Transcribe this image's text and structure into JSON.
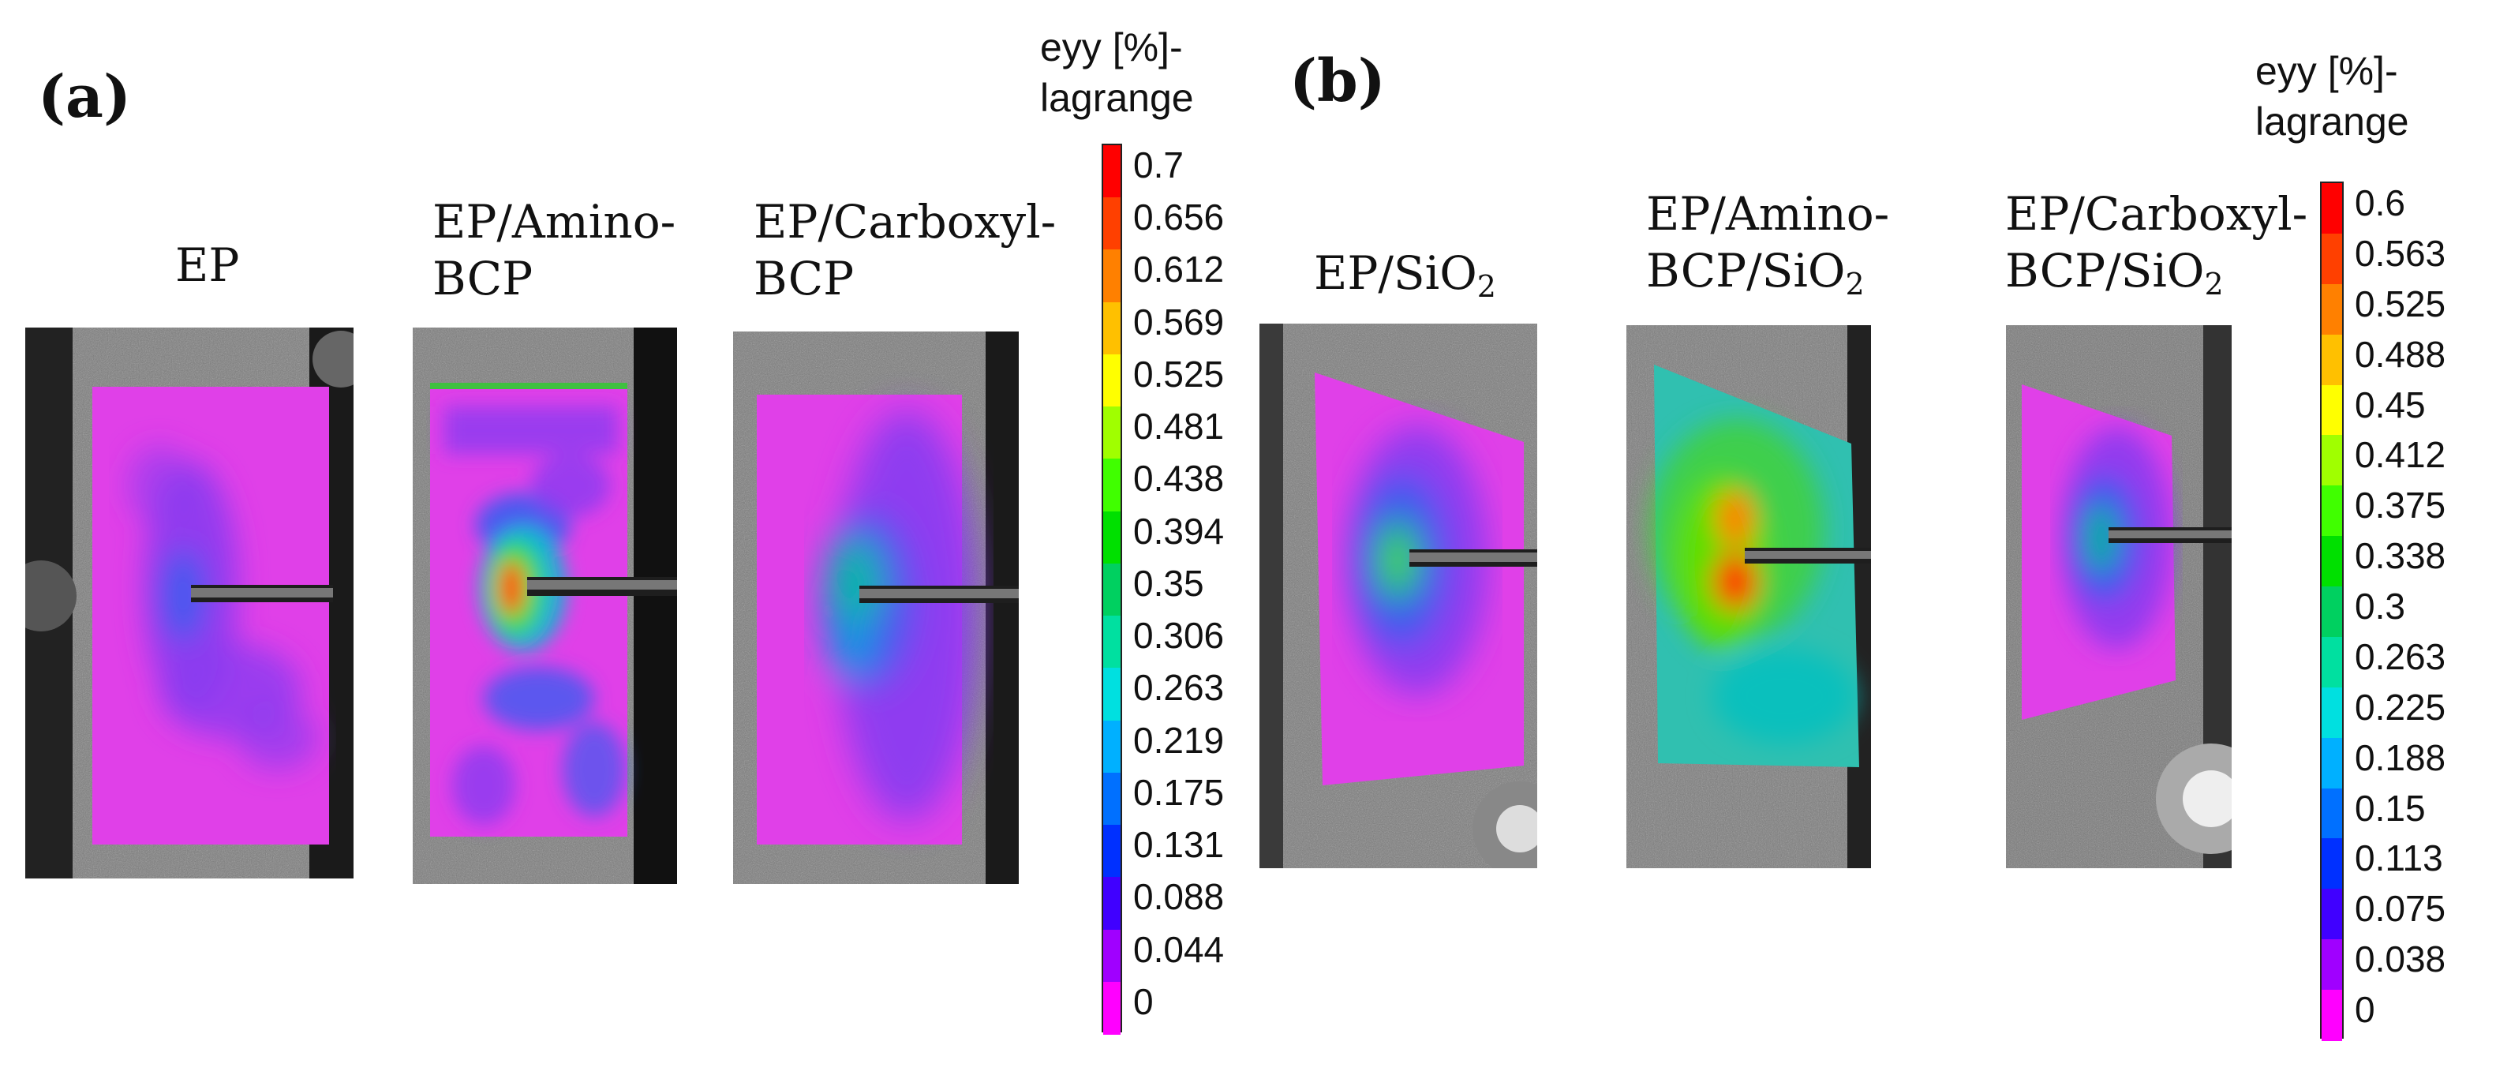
{
  "panels": [
    {
      "label": "(a)",
      "specimens": [
        {
          "line1": "EP",
          "line2": ""
        },
        {
          "line1": "EP/Amino-",
          "line2": "BCP"
        },
        {
          "line1": "EP/Carboxyl-",
          "line2": "BCP"
        }
      ],
      "colorbar": {
        "title_line1": "eyy [%]-",
        "title_line2": "lagrange",
        "ticks": [
          "0.7",
          "0.656",
          "0.612",
          "0.569",
          "0.525",
          "0.481",
          "0.438",
          "0.394",
          "0.35",
          "0.306",
          "0.263",
          "0.219",
          "0.175",
          "0.131",
          "0.088",
          "0.044",
          "0"
        ]
      }
    },
    {
      "label": "(b)",
      "specimens": [
        {
          "line1": "EP/SiO",
          "line1_sub": "2",
          "line2": ""
        },
        {
          "line1": "EP/Amino-",
          "line2": "BCP/SiO",
          "line2_sub": "2"
        },
        {
          "line1": "EP/Carboxyl-",
          "line2": "BCP/SiO",
          "line2_sub": "2"
        }
      ],
      "colorbar": {
        "title_line1": "eyy [%]-",
        "title_line2": "lagrange",
        "ticks": [
          "0.6",
          "0.563",
          "0.525",
          "0.488",
          "0.45",
          "0.412",
          "0.375",
          "0.338",
          "0.3",
          "0.263",
          "0.225",
          "0.188",
          "0.15",
          "0.113",
          "0.075",
          "0.038",
          "0"
        ]
      }
    }
  ],
  "colors": {
    "scale": [
      "#ff0000",
      "#ff4000",
      "#ff8000",
      "#ffc000",
      "#ffff00",
      "#a0ff00",
      "#40ff00",
      "#00e000",
      "#00d060",
      "#00e0a0",
      "#00e0e0",
      "#00b0ff",
      "#0070ff",
      "#0030ff",
      "#4000ff",
      "#a000ff",
      "#ff00ff"
    ],
    "magenta": "#e040e8",
    "purple": "#8a3cf0",
    "blue": "#3c5cf0"
  }
}
